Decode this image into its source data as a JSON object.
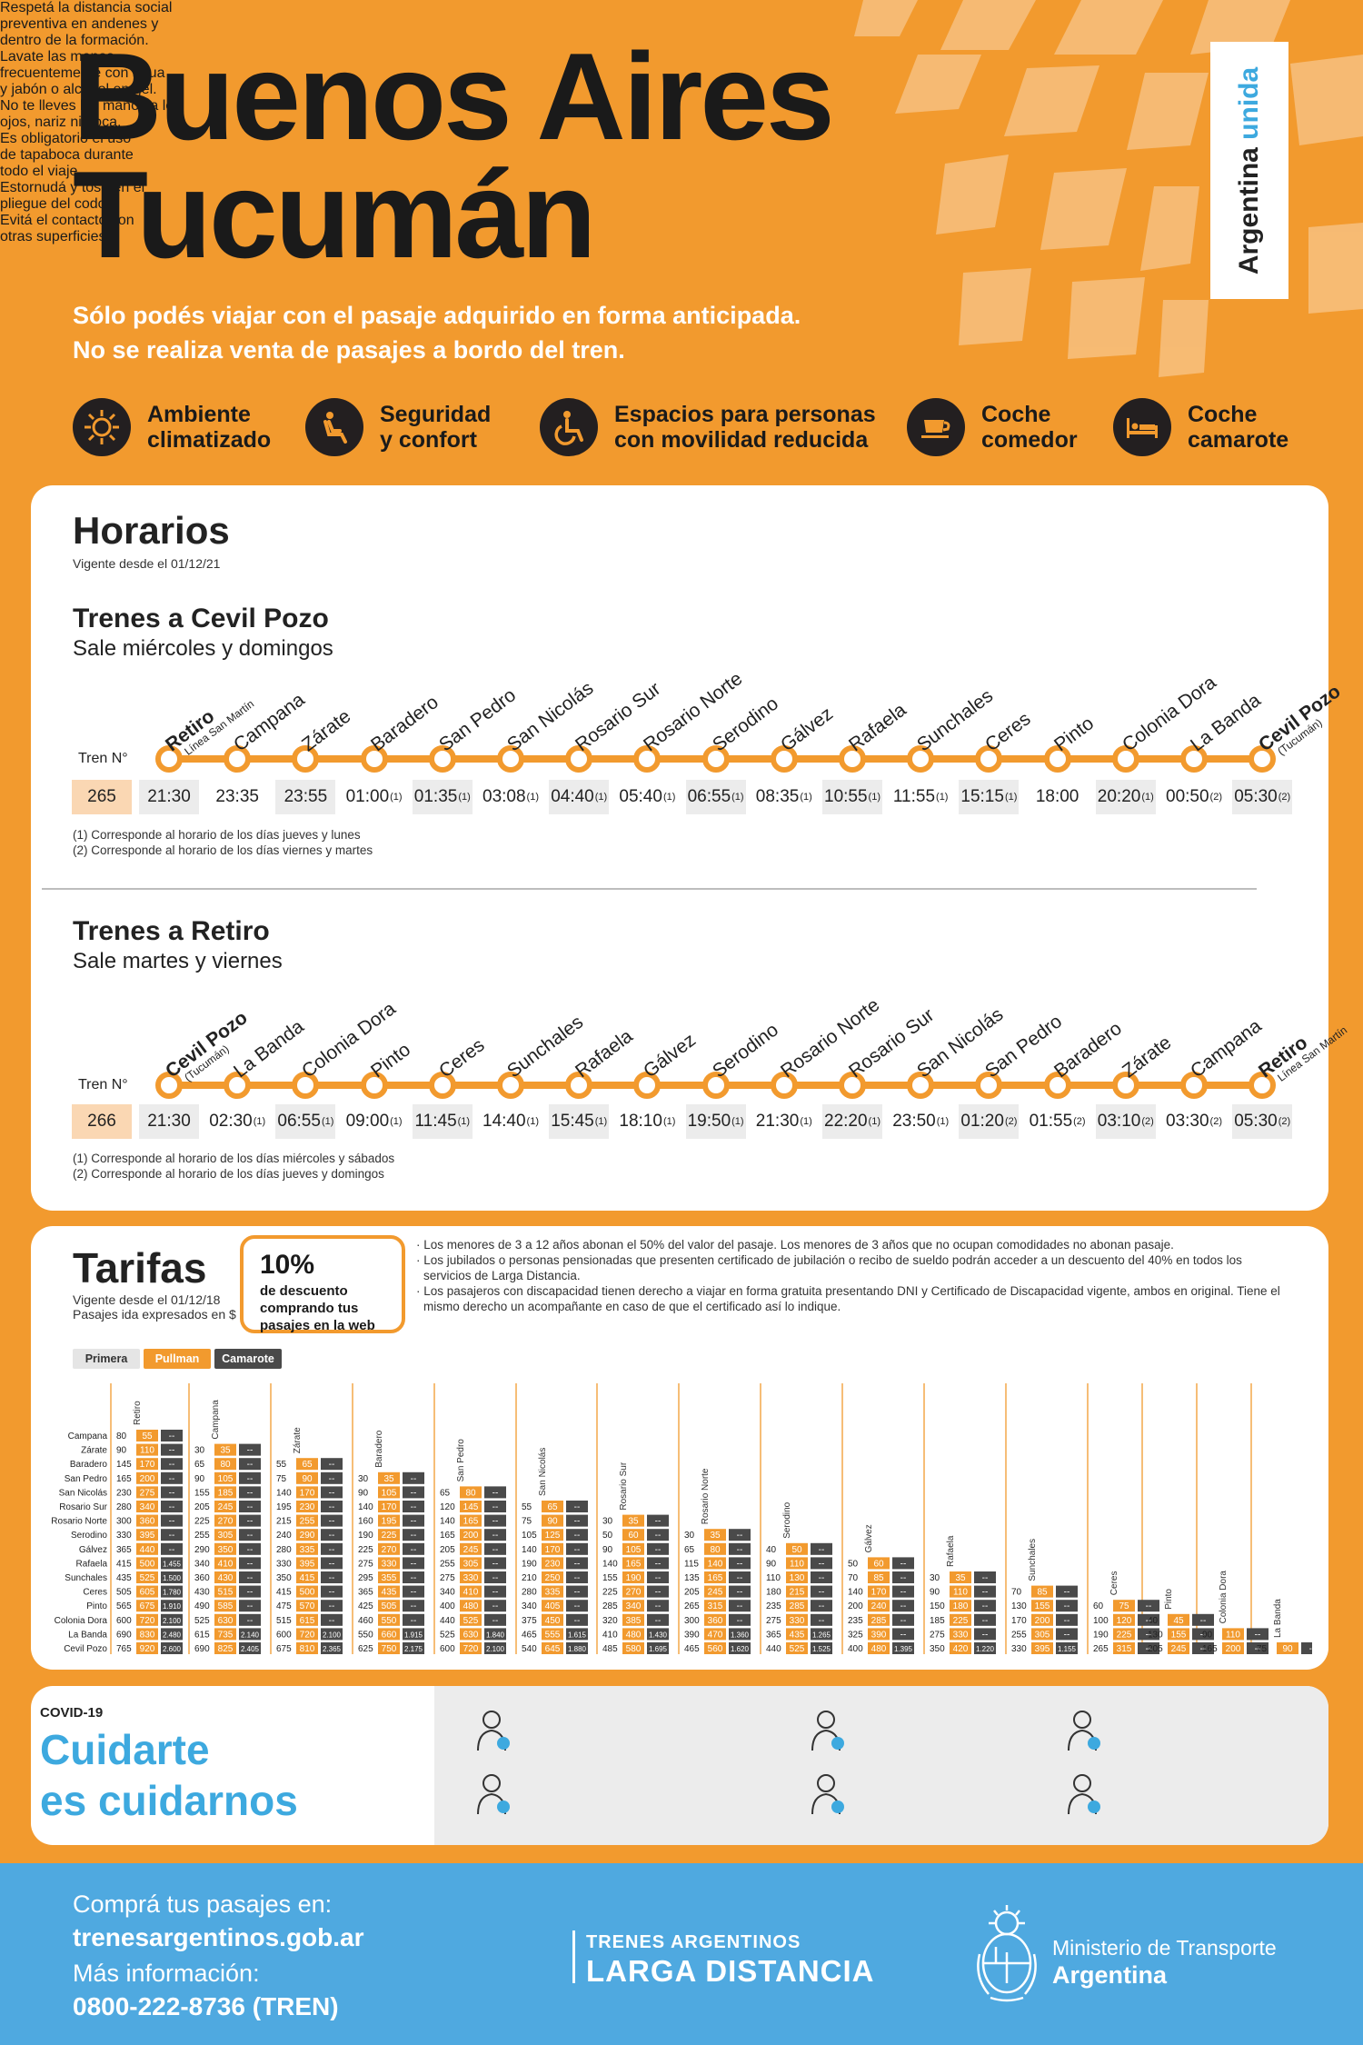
{
  "header": {
    "title_line1": "Buenos Aires",
    "title_line2": "Tucumán",
    "brand_part1": "Argentina",
    "brand_part2": "unida",
    "notice_line1": "Sólo podés viajar con el pasaje adquirido en forma anticipada.",
    "notice_line2": "No se realiza venta de pasajes a bordo del tren."
  },
  "features": [
    {
      "icon": "ac-sun-snowflake-icon",
      "line1": "Ambiente",
      "line2": "climatizado"
    },
    {
      "icon": "seat-icon",
      "line1": "Seguridad",
      "line2": "y confort"
    },
    {
      "icon": "wheelchair-icon",
      "line1": "Espacios para personas",
      "line2": "con movilidad reducida"
    },
    {
      "icon": "coffee-cup-icon",
      "line1": "Coche",
      "line2": "comedor"
    },
    {
      "icon": "bed-icon",
      "line1": "Coche",
      "line2": "camarote"
    }
  ],
  "horarios": {
    "title": "Horarios",
    "valid": "Vigente desde el 01/12/21",
    "tren_label": "Tren N°",
    "route1": {
      "title": "Trenes a Cevil Pozo",
      "subtitle": "Sale miércoles y domingos",
      "train": "265",
      "stations": [
        "Retiro",
        "Campana",
        "Zárate",
        "Baradero",
        "San Pedro",
        "San Nicolás",
        "Rosario Sur",
        "Rosario Norte",
        "Serodino",
        "Gálvez",
        "Rafaela",
        "Sunchales",
        "Ceres",
        "Pinto",
        "Colonia Dora",
        "La Banda",
        "Cevil Pozo"
      ],
      "first_sub": "Línea San Martín",
      "last_sub": "(Tucumán)",
      "times": [
        "21:30",
        "23:35",
        "23:55",
        "01:00",
        "01:35",
        "03:08",
        "04:40",
        "05:40",
        "06:55",
        "08:35",
        "10:55",
        "11:55",
        "15:15",
        "18:00",
        "20:20",
        "00:50",
        "05:30"
      ],
      "marks": [
        "",
        "",
        "",
        "1",
        "1",
        "1",
        "1",
        "1",
        "1",
        "1",
        "1",
        "1",
        "1",
        "",
        "1",
        "2",
        "2"
      ],
      "notes": [
        "(1) Corresponde al horario de los días jueves y lunes",
        "(2) Corresponde al horario de los días viernes y martes"
      ]
    },
    "route2": {
      "title": "Trenes a Retiro",
      "subtitle": "Sale martes y viernes",
      "train": "266",
      "stations": [
        "Cevil Pozo",
        "La Banda",
        "Colonia Dora",
        "Pinto",
        "Ceres",
        "Sunchales",
        "Rafaela",
        "Gálvez",
        "Serodino",
        "Rosario Norte",
        "Rosario Sur",
        "San Nicolás",
        "San Pedro",
        "Baradero",
        "Zárate",
        "Campana",
        "Retiro"
      ],
      "first_sub": "(Tucumán)",
      "last_sub": "Línea San Martín",
      "times": [
        "21:30",
        "02:30",
        "06:55",
        "09:00",
        "11:45",
        "14:40",
        "15:45",
        "18:10",
        "19:50",
        "21:30",
        "22:20",
        "23:50",
        "01:20",
        "01:55",
        "03:10",
        "03:30",
        "05:30"
      ],
      "marks": [
        "",
        "1",
        "1",
        "1",
        "1",
        "1",
        "1",
        "1",
        "1",
        "1",
        "1",
        "1",
        "2",
        "2",
        "2",
        "2",
        "2"
      ],
      "notes": [
        "(1) Corresponde al horario de los días miércoles y sábados",
        "(2) Corresponde al horario de los días jueves y domingos"
      ]
    }
  },
  "tarifas": {
    "title": "Tarifas",
    "valid1": "Vigente desde el 01/12/18",
    "valid2": "Pasajes ida expresados en $",
    "promo_pct": "10%",
    "promo_l1": "de descuento",
    "promo_l2": "comprando tus",
    "promo_l3": "pasajes en la web",
    "notes": [
      "· Los menores de 3 a 12 años abonan el 50% del valor del pasaje. Los menores de 3 años que no ocupan comodidades no abonan pasaje.",
      "· Los jubilados o personas pensionadas que presenten certificado de jubilación o recibo de sueldo podrán acceder a un descuento del 40% en todos los servicios de Larga Distancia.",
      "· Los pasajeros con discapacidad tienen derecho a viajar en forma gratuita presentando DNI y Certificado de Discapacidad vigente, ambos en original. Tiene el mismo derecho un acompañante en caso de que el certificado así lo indique."
    ],
    "legend": [
      "Primera",
      "Pullman",
      "Camarote"
    ],
    "colors": {
      "primera": "#e5e5e5",
      "pullman": "#F29A2E",
      "camarote": "#4a4a4a"
    },
    "stations": [
      "Retiro",
      "Campana",
      "Zárate",
      "Baradero",
      "San Pedro",
      "San Nicolás",
      "Rosario Sur",
      "Rosario Norte",
      "Serodino",
      "Gálvez",
      "Rafaela",
      "Sunchales",
      "Ceres",
      "Pinto",
      "Colonia Dora",
      "La Banda",
      "Cevil Pozo"
    ],
    "rows": [
      [
        "80|55|--"
      ],
      [
        "90|110|--",
        "30|35|--"
      ],
      [
        "145|170|--",
        "65|80|--",
        "55|65|--"
      ],
      [
        "165|200|--",
        "90|105|--",
        "75|90|--",
        "30|35|--"
      ],
      [
        "230|275|--",
        "155|185|--",
        "140|170|--",
        "90|105|--",
        "65|80|--"
      ],
      [
        "280|340|--",
        "205|245|--",
        "195|230|--",
        "140|170|--",
        "120|145|--",
        "55|65|--"
      ],
      [
        "300|360|--",
        "225|270|--",
        "215|255|--",
        "160|195|--",
        "140|165|--",
        "75|90|--",
        "30|35|--"
      ],
      [
        "330|395|--",
        "255|305|--",
        "240|290|--",
        "190|225|--",
        "165|200|--",
        "105|125|--",
        "50|60|--",
        "30|35|--"
      ],
      [
        "365|440|--",
        "290|350|--",
        "280|335|--",
        "225|270|--",
        "205|245|--",
        "140|170|--",
        "90|105|--",
        "65|80|--",
        "40|50|--"
      ],
      [
        "415|500|1.455",
        "340|410|--",
        "330|395|--",
        "275|330|--",
        "255|305|--",
        "190|230|--",
        "140|165|--",
        "115|140|--",
        "90|110|--",
        "50|60|--"
      ],
      [
        "435|525|1.500",
        "360|430|--",
        "350|415|--",
        "295|355|--",
        "275|330|--",
        "210|250|--",
        "155|190|--",
        "135|165|--",
        "110|130|--",
        "70|85|--",
        "30|35|--"
      ],
      [
        "505|605|1.780",
        "430|515|--",
        "415|500|--",
        "365|435|--",
        "340|410|--",
        "280|335|--",
        "225|270|--",
        "205|245|--",
        "180|215|--",
        "140|170|--",
        "90|110|--",
        "70|85|--"
      ],
      [
        "565|675|1.910",
        "490|585|--",
        "475|570|--",
        "425|505|--",
        "400|480|--",
        "340|405|--",
        "285|340|--",
        "265|315|--",
        "235|285|--",
        "200|240|--",
        "150|180|--",
        "130|155|--",
        "60|75|--"
      ],
      [
        "600|720|2.100",
        "525|630|--",
        "515|615|--",
        "460|550|--",
        "440|525|--",
        "375|450|--",
        "320|385|--",
        "300|360|--",
        "275|330|--",
        "235|285|--",
        "185|225|--",
        "170|200|--",
        "100|120|--",
        "40|45|--"
      ],
      [
        "690|830|2.480",
        "615|735|2.140",
        "600|720|2.100",
        "550|660|1.915",
        "525|630|1.840",
        "465|555|1.615",
        "410|480|1.430",
        "390|470|1.360",
        "365|435|1.265",
        "325|390|--",
        "275|330|--",
        "255|305|--",
        "190|225|--",
        "130|155|--",
        "90|110|--"
      ],
      [
        "765|920|2.600",
        "690|825|2.405",
        "675|810|2.365",
        "625|750|2.175",
        "600|720|2.100",
        "540|645|1.880",
        "485|580|1.695",
        "465|560|1.620",
        "440|525|1.525",
        "400|480|1.395",
        "350|420|1.220",
        "330|395|1.155",
        "265|315|--",
        "205|245|--",
        "165|200|--",
        "75|90|--"
      ]
    ]
  },
  "covid": {
    "tag": "COVID-19",
    "title1": "Cuidarte",
    "title2": "es cuidarnos",
    "items": [
      {
        "icon": "distance-icon",
        "l1": "Respetá la distancia social",
        "l2": "preventiva en andenes y",
        "l3": "dentro de la formación."
      },
      {
        "icon": "wash-hands-icon",
        "l1": "Lavate las manos",
        "l2": "frecuentemente con agua",
        "l3": "y jabón o alcohol en gel."
      },
      {
        "icon": "no-touch-face-icon",
        "l1": "No te lleves las manos a los",
        "l2": "ojos, nariz ni boca.",
        "l3": ""
      },
      {
        "icon": "face-mask-icon",
        "l1": "Es obligatorio el uso",
        "l2": "de tapaboca durante",
        "l3": "todo el viaje."
      },
      {
        "icon": "sneeze-elbow-icon",
        "l1": "Estornudá y tosé en el",
        "l2": "pliegue del codo.",
        "l3": ""
      },
      {
        "icon": "no-contact-surfaces-icon",
        "l1": "Evitá el contacto con",
        "l2": "otras superficies.",
        "l3": ""
      }
    ]
  },
  "footer": {
    "buy_label": "Comprá tus pasajes en:",
    "website": "trenesargentinos.gob.ar",
    "info_label": "Más información:",
    "phone": "0800-222-8736 (TREN)",
    "brand1": "TRENES ARGENTINOS",
    "brand2": "LARGA DISTANCIA",
    "ministry1": "Ministerio de Transporte",
    "ministry2": "Argentina"
  }
}
